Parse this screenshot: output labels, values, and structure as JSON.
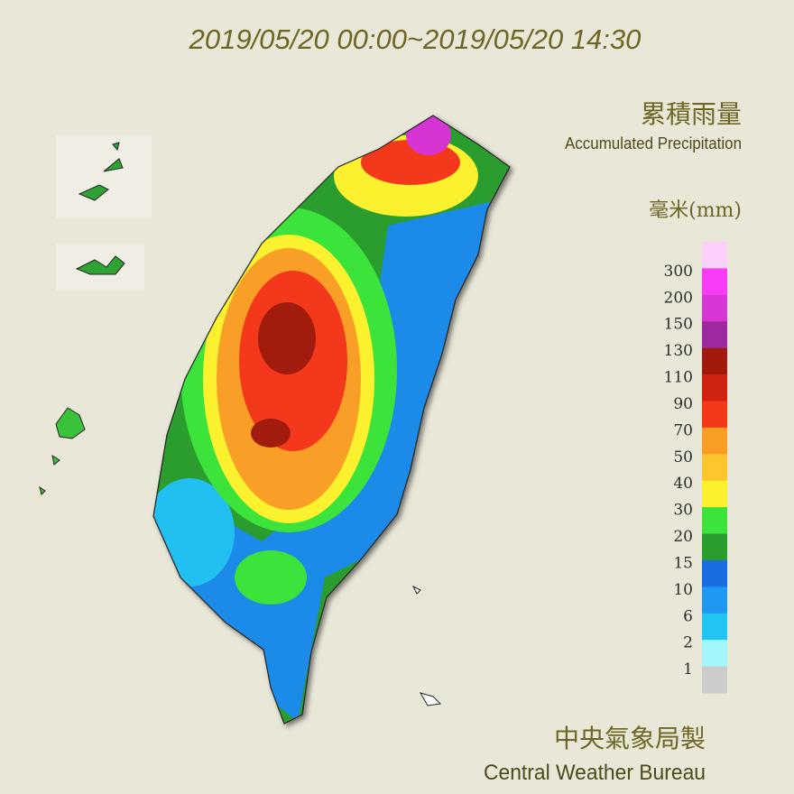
{
  "header": {
    "title": "2019/05/20 00:00~2019/05/20 14:30"
  },
  "legend": {
    "title_cn": "累積雨量",
    "title_en": "Accumulated Precipitation",
    "unit": "毫米(mm)",
    "labels": [
      300,
      200,
      150,
      130,
      110,
      90,
      70,
      50,
      40,
      30,
      20,
      15,
      10,
      6,
      2,
      1
    ],
    "colors": [
      "#fbd0f9",
      "#f73cf5",
      "#d636d4",
      "#9d2aa3",
      "#a11a0c",
      "#d12311",
      "#f4391a",
      "#f99e25",
      "#fcc62c",
      "#fbf12e",
      "#3be33b",
      "#2a9d2e",
      "#1a6de0",
      "#1e98f0",
      "#22c5f2",
      "#a3f6fb",
      "#cccccc"
    ]
  },
  "footer": {
    "credit_cn": "中央氣象局製",
    "credit_en": "Central Weather Bureau"
  }
}
